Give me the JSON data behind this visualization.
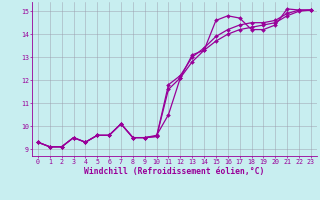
{
  "xlabel": "Windchill (Refroidissement éolien,°C)",
  "bg_color": "#c8eef0",
  "line_color": "#990099",
  "xlim": [
    -0.5,
    23.5
  ],
  "ylim": [
    8.7,
    15.4
  ],
  "yticks": [
    9,
    10,
    11,
    12,
    13,
    14,
    15
  ],
  "xticks": [
    0,
    1,
    2,
    3,
    4,
    5,
    6,
    7,
    8,
    9,
    10,
    11,
    12,
    13,
    14,
    15,
    16,
    17,
    18,
    19,
    20,
    21,
    22,
    23
  ],
  "line1_y": [
    9.3,
    9.1,
    9.1,
    9.5,
    9.3,
    9.6,
    9.6,
    10.1,
    9.5,
    9.5,
    9.6,
    10.5,
    12.1,
    13.1,
    13.3,
    14.6,
    14.8,
    14.7,
    14.2,
    14.2,
    14.4,
    15.1,
    15.05,
    15.05
  ],
  "line2_y": [
    9.3,
    9.1,
    9.1,
    9.5,
    9.3,
    9.6,
    9.6,
    10.1,
    9.5,
    9.5,
    9.55,
    11.6,
    12.1,
    12.8,
    13.3,
    13.7,
    14.0,
    14.2,
    14.3,
    14.4,
    14.5,
    14.8,
    15.0,
    15.05
  ],
  "line3_y": [
    9.3,
    9.1,
    9.1,
    9.5,
    9.3,
    9.6,
    9.6,
    10.1,
    9.5,
    9.5,
    9.55,
    11.8,
    12.2,
    13.0,
    13.4,
    13.9,
    14.2,
    14.4,
    14.5,
    14.5,
    14.6,
    14.9,
    15.05,
    15.05
  ],
  "marker": "D",
  "markersize": 2.0,
  "linewidth": 0.9,
  "tick_fontsize": 4.8,
  "xlabel_fontsize": 5.8
}
